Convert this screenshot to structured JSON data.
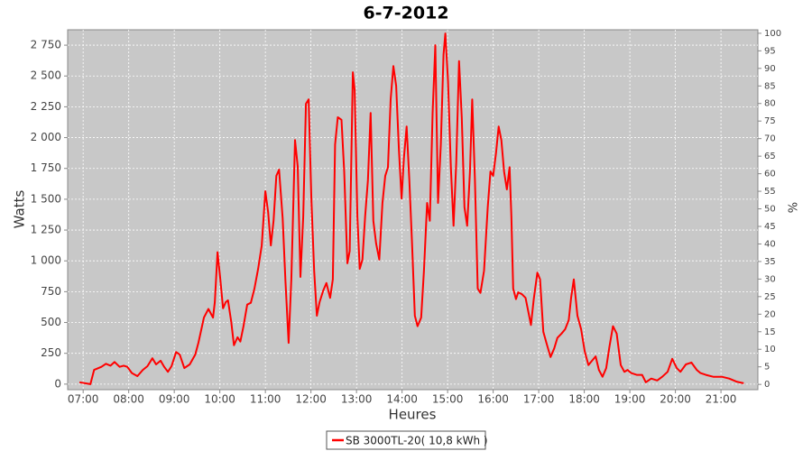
{
  "chart_data": {
    "type": "line",
    "title": "6-7-2012",
    "xlabel": "Heures",
    "ylabel": "Watts",
    "y2label": "%",
    "x": [
      6.92,
      7.16,
      7.24,
      7.4,
      7.5,
      7.6,
      7.69,
      7.8,
      7.89,
      7.97,
      8.07,
      8.19,
      8.31,
      8.41,
      8.52,
      8.6,
      8.7,
      8.78,
      8.86,
      8.94,
      9.04,
      9.12,
      9.22,
      9.34,
      9.46,
      9.53,
      9.65,
      9.75,
      9.85,
      9.89,
      9.95,
      10.01,
      10.07,
      10.13,
      10.18,
      10.25,
      10.31,
      10.39,
      10.45,
      10.52,
      10.6,
      10.68,
      10.76,
      10.84,
      10.92,
      11.0,
      11.06,
      11.12,
      11.18,
      11.24,
      11.3,
      11.38,
      11.44,
      11.51,
      11.57,
      11.65,
      11.71,
      11.77,
      11.83,
      11.89,
      11.95,
      12.01,
      12.07,
      12.13,
      12.19,
      12.27,
      12.34,
      12.42,
      12.48,
      12.53,
      12.59,
      12.67,
      12.73,
      12.8,
      12.85,
      12.92,
      12.96,
      13.02,
      13.07,
      13.13,
      13.19,
      13.25,
      13.31,
      13.37,
      13.43,
      13.5,
      13.57,
      13.63,
      13.69,
      13.75,
      13.81,
      13.87,
      13.93,
      13.99,
      14.04,
      14.1,
      14.16,
      14.22,
      14.28,
      14.34,
      14.42,
      14.48,
      14.55,
      14.61,
      14.67,
      14.73,
      14.79,
      14.85,
      14.91,
      14.95,
      15.01,
      15.07,
      15.13,
      15.19,
      15.25,
      15.31,
      15.37,
      15.43,
      15.49,
      15.54,
      15.6,
      15.66,
      15.72,
      15.8,
      15.88,
      15.94,
      16.0,
      16.06,
      16.12,
      16.18,
      16.24,
      16.3,
      16.36,
      16.4,
      16.44,
      16.5,
      16.55,
      16.63,
      16.71,
      16.77,
      16.83,
      16.89,
      16.97,
      17.03,
      17.1,
      17.18,
      17.26,
      17.34,
      17.41,
      17.5,
      17.58,
      17.66,
      17.71,
      17.77,
      17.85,
      17.93,
      18.01,
      18.09,
      18.17,
      18.25,
      18.32,
      18.4,
      18.48,
      18.55,
      18.63,
      18.71,
      18.8,
      18.88,
      18.95,
      19.03,
      19.15,
      19.27,
      19.35,
      19.47,
      19.6,
      19.71,
      19.83,
      19.93,
      20.03,
      20.11,
      20.23,
      20.35,
      20.47,
      20.55,
      20.67,
      20.83,
      21.02,
      21.18,
      21.34,
      21.5
    ],
    "series": [
      {
        "name": "SB 3000TL-20( 10,8 kWh )",
        "color": "#ff0000",
        "values": [
          15,
          0,
          115,
          140,
          165,
          150,
          180,
          140,
          150,
          140,
          90,
          65,
          115,
          145,
          210,
          160,
          190,
          140,
          100,
          145,
          260,
          240,
          130,
          160,
          240,
          335,
          540,
          610,
          540,
          665,
          1070,
          850,
          615,
          665,
          680,
          505,
          315,
          380,
          345,
          470,
          645,
          660,
          775,
          935,
          1125,
          1565,
          1395,
          1125,
          1325,
          1690,
          1740,
          1345,
          835,
          335,
          850,
          1980,
          1765,
          870,
          1360,
          2275,
          2310,
          1505,
          920,
          555,
          665,
          760,
          820,
          700,
          850,
          1945,
          2165,
          2145,
          1725,
          980,
          1080,
          2530,
          2385,
          1360,
          935,
          1010,
          1360,
          1655,
          2200,
          1325,
          1140,
          1010,
          1470,
          1690,
          1760,
          2310,
          2580,
          2420,
          1910,
          1505,
          1835,
          2090,
          1655,
          1140,
          555,
          470,
          540,
          920,
          1470,
          1325,
          2200,
          2750,
          1470,
          1945,
          2675,
          2845,
          2455,
          1765,
          1285,
          1800,
          2620,
          2165,
          1435,
          1285,
          1725,
          2310,
          1655,
          775,
          740,
          920,
          1435,
          1725,
          1690,
          1870,
          2090,
          1980,
          1725,
          1580,
          1760,
          1360,
          775,
          690,
          745,
          730,
          700,
          590,
          480,
          690,
          905,
          850,
          425,
          320,
          220,
          290,
          375,
          410,
          445,
          520,
          700,
          850,
          555,
          445,
          265,
          155,
          190,
          225,
          115,
          60,
          130,
          300,
          470,
          410,
          155,
          100,
          115,
          90,
          75,
          75,
          15,
          45,
          30,
          60,
          100,
          205,
          130,
          100,
          160,
          175,
          115,
          90,
          75,
          60,
          60,
          45,
          20,
          7
        ]
      }
    ],
    "xlim": [
      6.66,
      21.81
    ],
    "xticks": [
      {
        "value": 7,
        "label": "07:00"
      },
      {
        "value": 8,
        "label": "08:00"
      },
      {
        "value": 9,
        "label": "09:00"
      },
      {
        "value": 10,
        "label": "10:00"
      },
      {
        "value": 11,
        "label": "11:00"
      },
      {
        "value": 12,
        "label": "12:00"
      },
      {
        "value": 13,
        "label": "13:00"
      },
      {
        "value": 14,
        "label": "14:00"
      },
      {
        "value": 15,
        "label": "15:00"
      },
      {
        "value": 16,
        "label": "16:00"
      },
      {
        "value": 17,
        "label": "17:00"
      },
      {
        "value": 18,
        "label": "18:00"
      },
      {
        "value": 19,
        "label": "19:00"
      },
      {
        "value": 20,
        "label": "20:00"
      },
      {
        "value": 21,
        "label": "21:00"
      }
    ],
    "ylim": [
      -45,
      2875
    ],
    "yticks": [
      0,
      250,
      500,
      750,
      {
        "value": 1000,
        "label": "1 000"
      },
      {
        "value": 1250,
        "label": "1 250"
      },
      {
        "value": 1500,
        "label": "1 500"
      },
      {
        "value": 1750,
        "label": "1 750"
      },
      {
        "value": 2000,
        "label": "2 000"
      },
      {
        "value": 2250,
        "label": "2 250"
      },
      {
        "value": 2500,
        "label": "2 500"
      },
      {
        "value": 2750,
        "label": "2 750"
      }
    ],
    "y2lim": [
      -1.5,
      101
    ],
    "y2ticks": [
      0,
      5,
      10,
      15,
      20,
      25,
      30,
      35,
      40,
      45,
      50,
      55,
      60,
      65,
      70,
      75,
      80,
      85,
      90,
      95,
      100
    ],
    "grid": true
  }
}
